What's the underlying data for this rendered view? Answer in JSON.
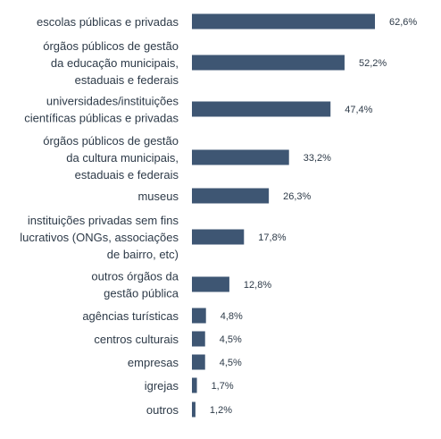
{
  "chart_data": {
    "type": "bar",
    "orientation": "horizontal",
    "categories": [
      [
        "escolas públicas e privadas"
      ],
      [
        "órgãos públicos de gestão",
        "da educação municipais,",
        "estaduais e federais"
      ],
      [
        "universidades/instituições",
        "científicas públicas e privadas"
      ],
      [
        "órgãos públicos de gestão",
        "da cultura municipais,",
        "estaduais e federais"
      ],
      [
        "museus"
      ],
      [
        "instituições privadas sem fins",
        "lucrativos (ONGs, associações",
        "de bairro, etc)"
      ],
      [
        "outros órgãos da",
        "gestão pública"
      ],
      [
        "agências turísticas"
      ],
      [
        "centros culturais"
      ],
      [
        "empresas"
      ],
      [
        "igrejas"
      ],
      [
        "outros"
      ]
    ],
    "values": [
      62.6,
      52.2,
      47.4,
      33.2,
      26.3,
      17.8,
      12.8,
      4.8,
      4.5,
      4.5,
      1.7,
      1.2
    ],
    "value_labels": [
      "62,6%",
      "52,2%",
      "47,4%",
      "33,2%",
      "26,3%",
      "17,8%",
      "12,8%",
      "4,8%",
      "4,5%",
      "4,5%",
      "1,7%",
      "1,2%"
    ],
    "bar_color": "#3e5673",
    "text_color": "#2d3a48",
    "grid": false,
    "legend": "none"
  }
}
